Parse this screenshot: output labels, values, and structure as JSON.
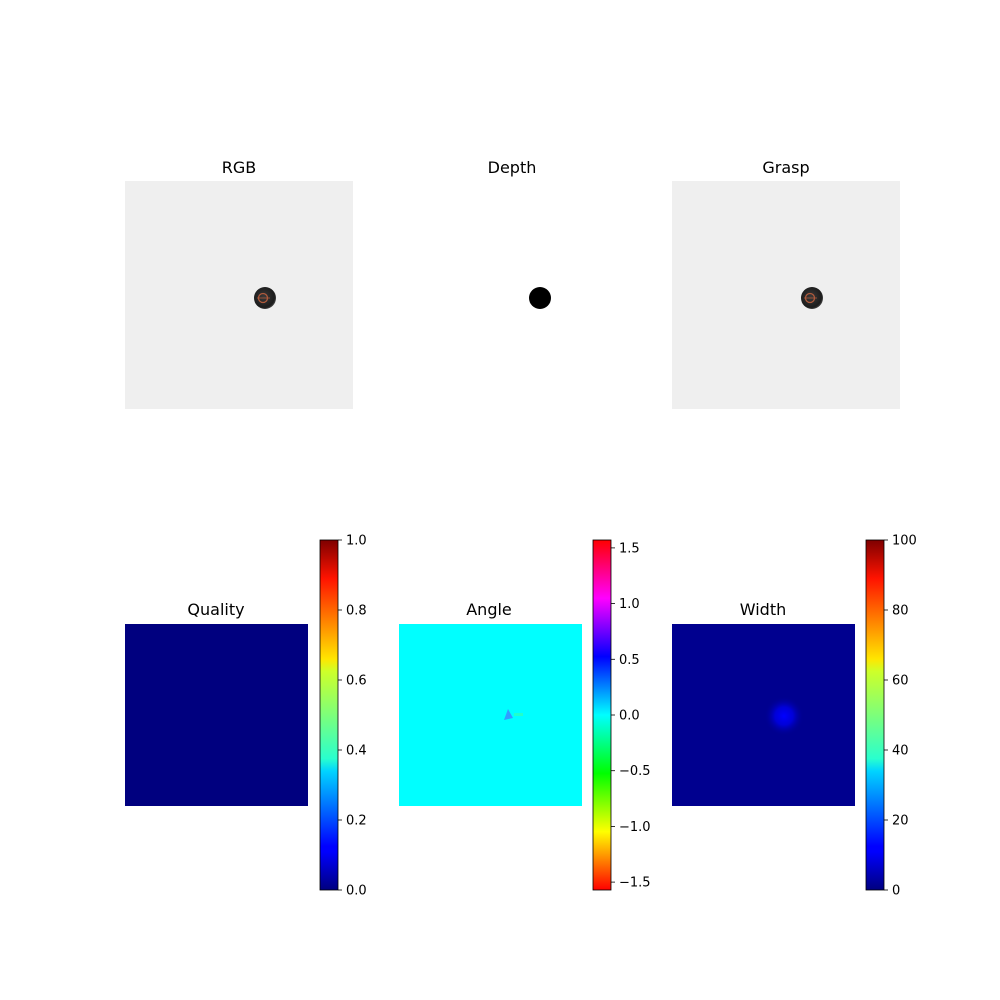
{
  "figure": {
    "background": "#ffffff"
  },
  "chart_data": [
    {
      "type": "image",
      "title": "RGB",
      "content": "light gray background with a small dark round object right of center",
      "colors": {
        "background": "#efefef",
        "object": "#2a2a2a",
        "object_detail": "#b05a3c"
      }
    },
    {
      "type": "image",
      "title": "Depth",
      "content": "white background with a single black disc right of center",
      "colors": {
        "background": "#ffffff",
        "object": "#000000"
      }
    },
    {
      "type": "image",
      "title": "Grasp",
      "content": "same as RGB panel",
      "colors": {
        "background": "#efefef",
        "object": "#2a2a2a",
        "object_detail": "#b05a3c"
      }
    },
    {
      "type": "heatmap",
      "title": "Quality",
      "colormap": "jet",
      "colors": {
        "field": "#00007f"
      },
      "colorbar": {
        "vmin": 0.0,
        "vmax": 1.0,
        "ticks": [
          0.0,
          0.2,
          0.4,
          0.6,
          0.8,
          1.0
        ],
        "tick_labels": [
          "0.0",
          "0.2",
          "0.4",
          "0.6",
          "0.8",
          "1.0"
        ]
      }
    },
    {
      "type": "heatmap",
      "title": "Angle",
      "colormap": "hsv",
      "colors": {
        "field": "#00ffff",
        "spot": "#3a8cff"
      },
      "colorbar": {
        "vmin": -1.5708,
        "vmax": 1.5708,
        "ticks": [
          -1.5,
          -1.0,
          -0.5,
          0.0,
          0.5,
          1.0,
          1.5
        ],
        "tick_labels": [
          "−1.5",
          "−1.0",
          "−0.5",
          "0.0",
          "0.5",
          "1.0",
          "1.5"
        ]
      }
    },
    {
      "type": "heatmap",
      "title": "Width",
      "colormap": "jet",
      "colors": {
        "field": "#00008f",
        "spot": "#0000ff"
      },
      "colorbar": {
        "vmin": 0,
        "vmax": 100,
        "ticks": [
          0,
          20,
          40,
          60,
          80,
          100
        ],
        "tick_labels": [
          "0",
          "20",
          "40",
          "60",
          "80",
          "100"
        ]
      }
    }
  ]
}
